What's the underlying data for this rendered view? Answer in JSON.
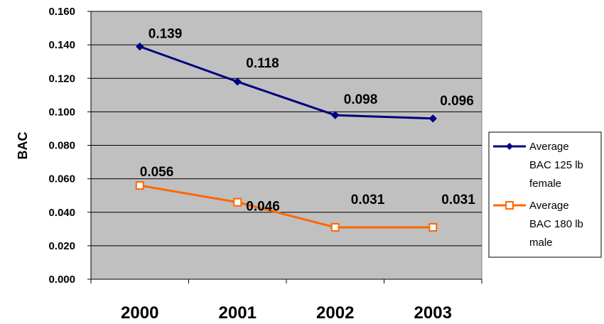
{
  "chart_data": {
    "type": "line",
    "title": "",
    "xlabel": "",
    "ylabel": "BAC",
    "categories": [
      "2000",
      "2001",
      "2002",
      "2003"
    ],
    "ylim": [
      0,
      0.16
    ],
    "yticks": [
      "0.000",
      "0.020",
      "0.040",
      "0.060",
      "0.080",
      "0.100",
      "0.120",
      "0.140",
      "0.160"
    ],
    "grid": true,
    "legend_position": "right",
    "plot_background": "#c0c0c0",
    "series": [
      {
        "name_lines": [
          "Average",
          "BAC 125 lb",
          "female"
        ],
        "values": [
          0.139,
          0.118,
          0.098,
          0.096
        ],
        "labels": [
          "0.139",
          "0.118",
          "0.098",
          "0.096"
        ],
        "color": "#000080",
        "marker": "diamond"
      },
      {
        "name_lines": [
          "Average",
          "BAC 180 lb",
          "male"
        ],
        "values": [
          0.056,
          0.046,
          0.031,
          0.031
        ],
        "labels": [
          "0.056",
          "0.046",
          "0.031",
          "0.031"
        ],
        "color": "#ff6600",
        "marker": "square"
      }
    ]
  }
}
